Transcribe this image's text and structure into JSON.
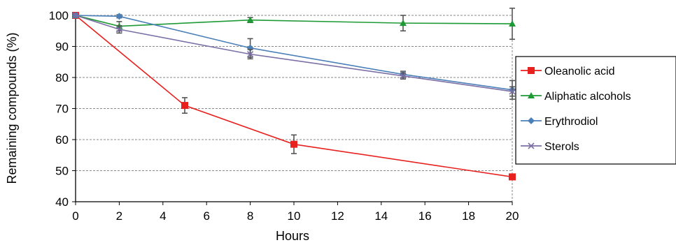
{
  "chart_data": {
    "type": "line",
    "title": "",
    "xlabel": "Hours",
    "ylabel": "Remaining compounds (%)",
    "xlim": [
      0,
      20
    ],
    "ylim": [
      40,
      100
    ],
    "xticks": [
      0,
      2,
      4,
      6,
      8,
      10,
      12,
      14,
      16,
      18,
      20
    ],
    "yticks": [
      40,
      50,
      60,
      70,
      80,
      90,
      100
    ],
    "grid": "horizontal dashed",
    "legend_position": "right",
    "series": [
      {
        "name": "Oleanolic acid",
        "color": "#e8211f",
        "marker": "square",
        "x": [
          0,
          5,
          10,
          20
        ],
        "y": [
          100,
          71,
          58.5,
          48
        ],
        "err": [
          0,
          2.5,
          3,
          0.8
        ]
      },
      {
        "name": "Aliphatic alcohols",
        "color": "#1e9a35",
        "marker": "triangle",
        "x": [
          0,
          2,
          8,
          15,
          20
        ],
        "y": [
          100,
          96.5,
          98.5,
          97.5,
          97.3
        ],
        "err": [
          0,
          1.5,
          0.8,
          2.5,
          5
        ]
      },
      {
        "name": "Erythrodiol",
        "color": "#4a7fb8",
        "marker": "diamond",
        "x": [
          0,
          2,
          8,
          15,
          20
        ],
        "y": [
          100,
          99.7,
          89.5,
          81,
          76
        ],
        "err": [
          0,
          0.5,
          3,
          1,
          3
        ]
      },
      {
        "name": "Sterols",
        "color": "#7b6fa6",
        "marker": "x",
        "x": [
          0,
          2,
          8,
          15,
          20
        ],
        "y": [
          100,
          95.5,
          87.5,
          80.5,
          75.5
        ],
        "err": [
          0,
          1.2,
          1.5,
          1,
          1.5
        ]
      }
    ]
  }
}
